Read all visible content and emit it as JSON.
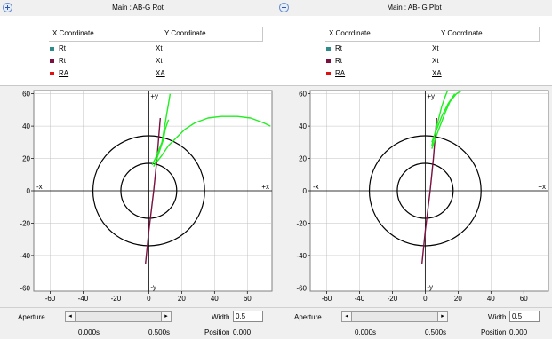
{
  "colors": {
    "green_trace": "#22ee22",
    "maroon": "#7a1040",
    "teal": "#2e8b8b",
    "red": "#e01010",
    "grid": "#c0c0c0"
  },
  "panels": [
    {
      "title": "Main : AB-G Rot",
      "legend": {
        "x_header": "X Coordinate",
        "y_header": "Y Coordinate",
        "rows": [
          {
            "x": "Rt",
            "y": "Xt",
            "swatch": "teal",
            "icon": "square-marker-icon"
          },
          {
            "x": "Rt",
            "y": "Xt",
            "swatch": "maroon",
            "icon": "square-marker-icon"
          },
          {
            "x": "RA",
            "y": "XA",
            "swatch": "red",
            "icon": "square-marker-icon"
          }
        ]
      },
      "aperture": {
        "label": "Aperture",
        "left_arrow": "◂",
        "right_arrow": "▸",
        "width_label": "Width",
        "width_value": "0.5",
        "start_time": "0.000s",
        "end_time": "0.500s",
        "position_label": "Position",
        "position_value": "0.000"
      },
      "chart_data": {
        "type": "line",
        "xlim": [
          -70,
          75
        ],
        "ylim": [
          -62,
          62
        ],
        "x_ticks": [
          -60,
          -40,
          -20,
          0,
          20,
          40,
          60
        ],
        "y_ticks": [
          60,
          40,
          20,
          0,
          -20,
          -40,
          -60
        ],
        "quadrant_labels": {
          "plus_y": "+y",
          "minus_y": "-y",
          "minus_x": "-x",
          "plus_x": "+x"
        },
        "circles": [
          {
            "center": [
              0,
              0
            ],
            "radius": 34
          },
          {
            "center": [
              0,
              0
            ],
            "radius": 17
          }
        ],
        "grid": true,
        "series": [
          {
            "color": "maroon",
            "points": [
              [
                -2,
                -45
              ],
              [
                0,
                -25
              ],
              [
                3,
                0
              ],
              [
                5,
                20
              ],
              [
                7,
                45
              ]
            ]
          },
          {
            "color": "green_trace",
            "points": [
              [
                5,
                18
              ],
              [
                8,
                22
              ],
              [
                12,
                28
              ],
              [
                17,
                33
              ],
              [
                22,
                38
              ],
              [
                28,
                42
              ],
              [
                36,
                45
              ],
              [
                44,
                46
              ],
              [
                54,
                46
              ],
              [
                62,
                45
              ],
              [
                70,
                42
              ],
              [
                74,
                40
              ]
            ]
          },
          {
            "color": "green_trace",
            "points": [
              [
                2,
                16
              ],
              [
                4,
                20
              ],
              [
                6,
                25
              ],
              [
                8,
                30
              ],
              [
                9,
                36
              ],
              [
                10,
                42
              ],
              [
                11,
                48
              ],
              [
                12,
                54
              ],
              [
                13,
                60
              ]
            ]
          },
          {
            "color": "green_trace",
            "points": [
              [
                3,
                15
              ],
              [
                5,
                20
              ],
              [
                7,
                26
              ],
              [
                9,
                32
              ],
              [
                10,
                38
              ],
              [
                12,
                44
              ]
            ]
          }
        ]
      }
    },
    {
      "title": "Main : AB- G Plot",
      "legend": {
        "x_header": "X Coordinate",
        "y_header": "Y Coordinate",
        "rows": [
          {
            "x": "Rt",
            "y": "Xt",
            "swatch": "teal",
            "icon": "square-marker-icon"
          },
          {
            "x": "Rt",
            "y": "Xt",
            "swatch": "maroon",
            "icon": "square-marker-icon"
          },
          {
            "x": "RA",
            "y": "XA",
            "swatch": "red",
            "icon": "square-marker-icon"
          }
        ]
      },
      "aperture": {
        "label": "Aperture",
        "left_arrow": "◂",
        "right_arrow": "▸",
        "width_label": "Width",
        "width_value": "0.5",
        "start_time": "0.000s",
        "end_time": "0.500s",
        "position_label": "Position",
        "position_value": "0.000"
      },
      "chart_data": {
        "type": "line",
        "xlim": [
          -70,
          75
        ],
        "ylim": [
          -62,
          62
        ],
        "x_ticks": [
          -60,
          -40,
          -20,
          0,
          20,
          40,
          60
        ],
        "y_ticks": [
          60,
          40,
          20,
          0,
          -20,
          -40,
          -60
        ],
        "quadrant_labels": {
          "plus_y": "+y",
          "minus_y": "-y",
          "minus_x": "-x",
          "plus_x": "+x"
        },
        "circles": [
          {
            "center": [
              0,
              0
            ],
            "radius": 34
          },
          {
            "center": [
              0,
              0
            ],
            "radius": 17
          }
        ],
        "grid": true,
        "series": [
          {
            "color": "maroon",
            "points": [
              [
                -2,
                -45
              ],
              [
                0,
                -25
              ],
              [
                3,
                0
              ],
              [
                5,
                20
              ],
              [
                7,
                45
              ]
            ]
          },
          {
            "color": "green_trace",
            "points": [
              [
                4,
                26
              ],
              [
                6,
                32
              ],
              [
                9,
                40
              ],
              [
                12,
                48
              ],
              [
                15,
                55
              ],
              [
                19,
                60
              ],
              [
                24,
                63
              ],
              [
                30,
                64
              ]
            ]
          },
          {
            "color": "green_trace",
            "points": [
              [
                4,
                28
              ],
              [
                6,
                36
              ],
              [
                8,
                44
              ],
              [
                10,
                52
              ],
              [
                12,
                58
              ],
              [
                14,
                63
              ]
            ]
          },
          {
            "color": "green_trace",
            "points": [
              [
                4,
                30
              ],
              [
                7,
                38
              ],
              [
                10,
                46
              ],
              [
                14,
                54
              ],
              [
                18,
                60
              ]
            ]
          }
        ]
      }
    }
  ]
}
